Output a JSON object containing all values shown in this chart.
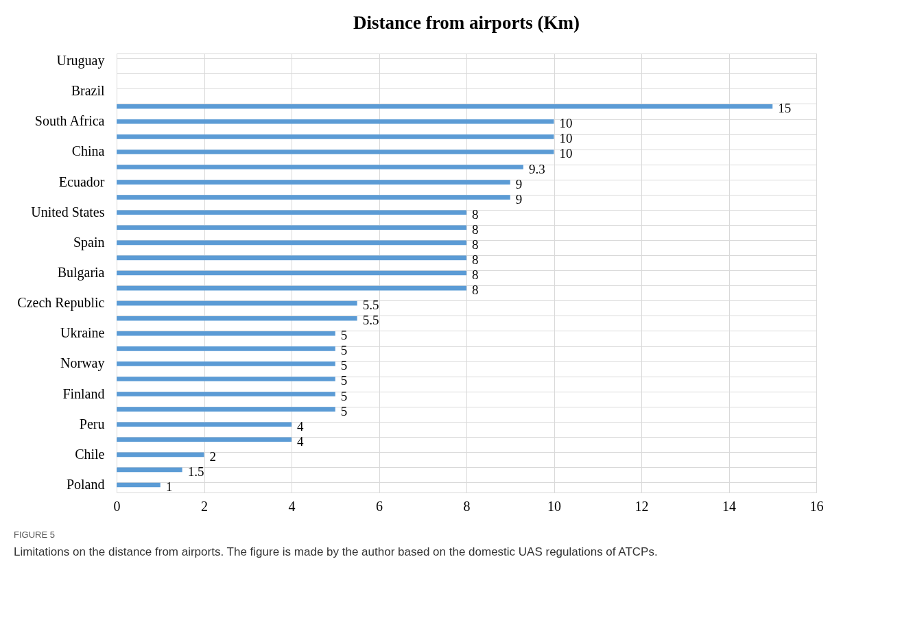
{
  "chart_data": {
    "type": "bar",
    "orientation": "horizontal",
    "title": "Distance from airports (Km)",
    "categories": [
      "Uruguay",
      null,
      "Brazil",
      null,
      "South Africa",
      null,
      "China",
      null,
      "Ecuador",
      null,
      "United States",
      null,
      "Spain",
      null,
      "Bulgaria",
      null,
      "Czech Republic",
      null,
      "Ukraine",
      null,
      "Norway",
      null,
      "Finland",
      null,
      "Peru",
      null,
      "Chile",
      null,
      "Poland"
    ],
    "values": [
      null,
      null,
      null,
      15,
      10,
      10,
      10,
      9.3,
      9,
      9,
      8,
      8,
      8,
      8,
      8,
      8,
      5.5,
      5.5,
      5,
      5,
      5,
      5,
      5,
      5,
      4,
      4,
      2,
      1.5,
      1
    ],
    "color": "#5b9bd5",
    "xlim": [
      0,
      16
    ],
    "xticks": [
      0,
      2,
      4,
      6,
      8,
      10,
      12,
      14,
      16
    ],
    "grid": true,
    "data_labels": true,
    "annotations": [
      "FIGURE 5",
      "Limitations on the distance from airports. The figure is made by the author based on the domestic UAS regulations of ATCPs."
    ]
  }
}
